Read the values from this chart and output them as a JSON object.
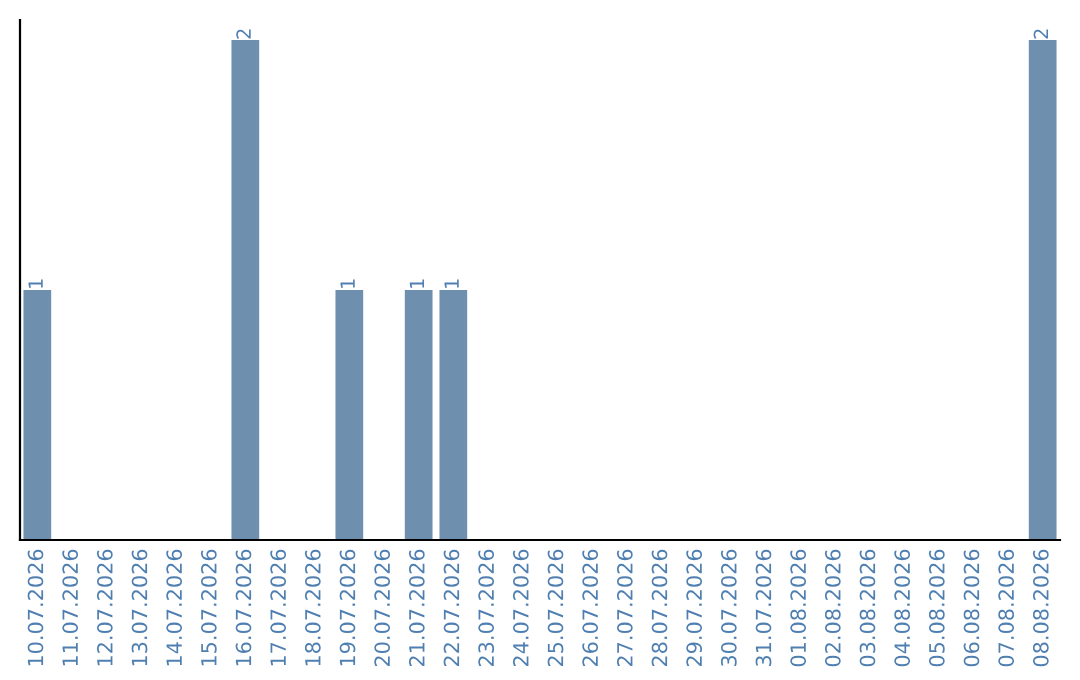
{
  "chart_data": {
    "type": "bar",
    "categories": [
      "10.07.2026",
      "11.07.2026",
      "12.07.2026",
      "13.07.2026",
      "14.07.2026",
      "15.07.2026",
      "16.07.2026",
      "17.07.2026",
      "18.07.2026",
      "19.07.2026",
      "20.07.2026",
      "21.07.2026",
      "22.07.2026",
      "23.07.2026",
      "24.07.2026",
      "25.07.2026",
      "26.07.2026",
      "27.07.2026",
      "28.07.2026",
      "29.07.2026",
      "30.07.2026",
      "31.07.2026",
      "01.08.2026",
      "02.08.2026",
      "03.08.2026",
      "04.08.2026",
      "05.08.2026",
      "06.08.2026",
      "07.08.2026",
      "08.08.2026"
    ],
    "values": [
      1,
      0,
      0,
      0,
      0,
      0,
      2,
      0,
      0,
      1,
      0,
      1,
      1,
      0,
      0,
      0,
      0,
      0,
      0,
      0,
      0,
      0,
      0,
      0,
      0,
      0,
      0,
      0,
      0,
      2
    ],
    "value_labels": [
      "1",
      null,
      null,
      null,
      null,
      null,
      "2",
      null,
      null,
      "1",
      null,
      "1",
      "1",
      null,
      null,
      null,
      null,
      null,
      null,
      null,
      null,
      null,
      null,
      null,
      null,
      null,
      null,
      null,
      null,
      "2"
    ],
    "color": "#6e8fae",
    "ylim": [
      0,
      2.08
    ],
    "tick_labels": "x"
  }
}
